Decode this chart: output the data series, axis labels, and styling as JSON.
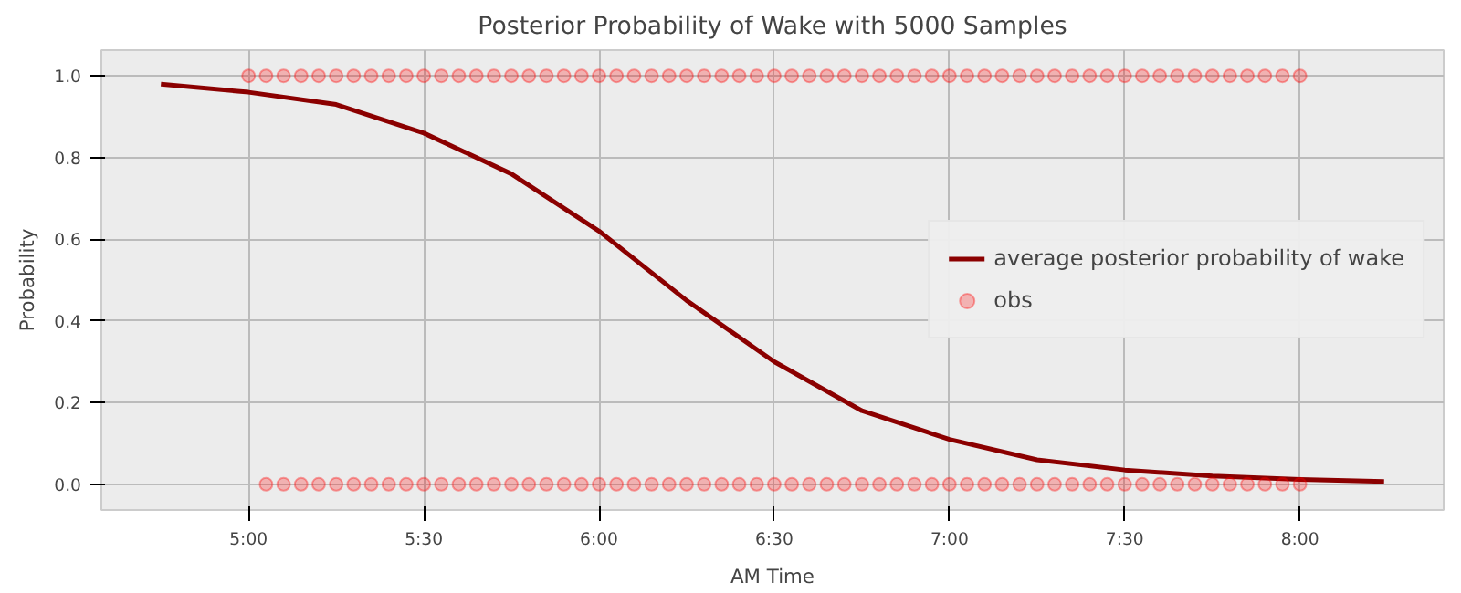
{
  "chart_data": {
    "type": "line",
    "title": "Posterior Probability of Wake with 5000 Samples",
    "xlabel": "AM Time",
    "ylabel": "Probability",
    "xlim": [
      4.58,
      8.41
    ],
    "ylim": [
      -0.063,
      1.063
    ],
    "xticks": [
      {
        "value": 5,
        "label": "5:00"
      },
      {
        "value": 5.5,
        "label": "5:30"
      },
      {
        "value": 6,
        "label": "6:00"
      },
      {
        "value": 6.5,
        "label": "6:30"
      },
      {
        "value": 7,
        "label": "7:00"
      },
      {
        "value": 7.5,
        "label": "7:30"
      },
      {
        "value": 8,
        "label": "8:00"
      }
    ],
    "yticks": [
      {
        "value": 0,
        "label": "0.0"
      },
      {
        "value": 0.2,
        "label": "0.2"
      },
      {
        "value": 0.4,
        "label": "0.4"
      },
      {
        "value": 0.6,
        "label": "0.6"
      },
      {
        "value": 0.8,
        "label": "0.8"
      },
      {
        "value": 1,
        "label": "1.0"
      }
    ],
    "grid": true,
    "legend": "right",
    "series": [
      {
        "name": "average posterior probability of wake",
        "color": "#8b0000",
        "marker": "none",
        "line_style": "solid",
        "x": [
          4.75,
          5.0,
          5.25,
          5.5,
          5.75,
          6.0,
          6.25,
          6.5,
          6.75,
          7.0,
          7.25,
          7.5,
          7.75,
          8.0,
          8.24
        ],
        "values": [
          0.98,
          0.96,
          0.93,
          0.86,
          0.76,
          0.62,
          0.45,
          0.3,
          0.18,
          0.11,
          0.06,
          0.035,
          0.02,
          0.012,
          0.007
        ]
      },
      {
        "name": "obs",
        "type": "scatter",
        "color": "#ff0000",
        "marker": "circle",
        "x": [
          5.0,
          5.05,
          5.1,
          5.15,
          5.2,
          5.25,
          5.3,
          5.35,
          5.4,
          5.45,
          5.5,
          5.55,
          5.6,
          5.65,
          5.7,
          5.75,
          5.8,
          5.85,
          5.9,
          5.95,
          6.0,
          6.05,
          6.1,
          6.15,
          6.2,
          6.25,
          6.3,
          6.35,
          6.4,
          6.45,
          6.5,
          6.55,
          6.6,
          6.65,
          6.7,
          6.75,
          6.8,
          6.85,
          6.9,
          6.95,
          7.0,
          7.05,
          7.1,
          7.15,
          7.2,
          7.25,
          7.3,
          7.35,
          7.4,
          7.45,
          7.5,
          7.55,
          7.6,
          7.65,
          7.7,
          7.75,
          7.8,
          7.85,
          7.9,
          7.95,
          8.0,
          5.05,
          5.1,
          5.15,
          5.2,
          5.25,
          5.3,
          5.35,
          5.4,
          5.45,
          5.5,
          5.55,
          5.6,
          5.65,
          5.7,
          5.75,
          5.8,
          5.85,
          5.9,
          5.95,
          6.0,
          6.05,
          6.1,
          6.15,
          6.2,
          6.25,
          6.3,
          6.35,
          6.4,
          6.45,
          6.5,
          6.55,
          6.6,
          6.65,
          6.7,
          6.75,
          6.8,
          6.85,
          6.9,
          6.95,
          7.0,
          7.05,
          7.1,
          7.15,
          7.2,
          7.25,
          7.3,
          7.35,
          7.4,
          7.45,
          7.5,
          7.55,
          7.6,
          7.65,
          7.7,
          7.75,
          7.8,
          7.85,
          7.9,
          7.95,
          8.0
        ],
        "values": [
          1,
          1,
          1,
          1,
          1,
          1,
          1,
          1,
          1,
          1,
          1,
          1,
          1,
          1,
          1,
          1,
          1,
          1,
          1,
          1,
          1,
          1,
          1,
          1,
          1,
          1,
          1,
          1,
          1,
          1,
          1,
          1,
          1,
          1,
          1,
          1,
          1,
          1,
          1,
          1,
          1,
          1,
          1,
          1,
          1,
          1,
          1,
          1,
          1,
          1,
          1,
          1,
          1,
          1,
          1,
          1,
          1,
          1,
          1,
          1,
          1,
          0,
          0,
          0,
          0,
          0,
          0,
          0,
          0,
          0,
          0,
          0,
          0,
          0,
          0,
          0,
          0,
          0,
          0,
          0,
          0,
          0,
          0,
          0,
          0,
          0,
          0,
          0,
          0,
          0,
          0,
          0,
          0,
          0,
          0,
          0,
          0,
          0,
          0,
          0,
          0,
          0,
          0,
          0,
          0,
          0,
          0,
          0,
          0,
          0,
          0,
          0,
          0,
          0,
          0,
          0,
          0,
          0,
          0,
          0,
          0
        ]
      }
    ]
  }
}
